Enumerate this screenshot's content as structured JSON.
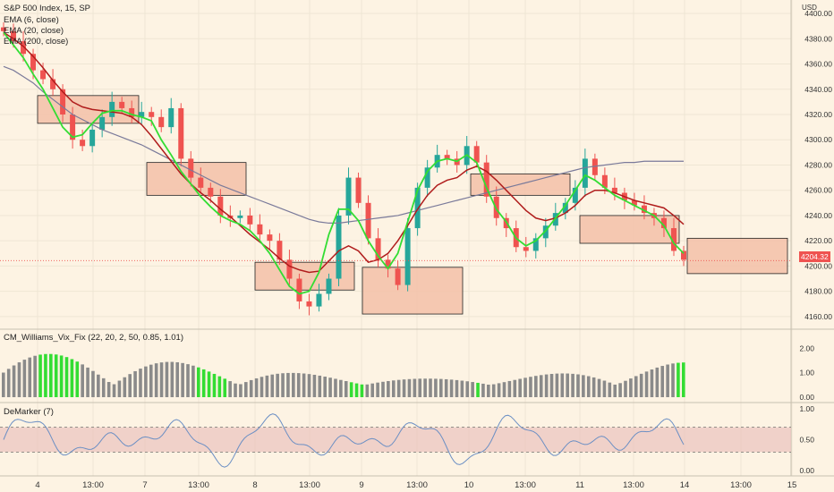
{
  "header": {
    "title": "S&P 500 Index, 15, SP",
    "indicators": [
      "EMA (6, close)",
      "EMA (20, close)",
      "EMA (200, close)"
    ]
  },
  "currency": "USD",
  "price_tag": "4204.32",
  "panels": {
    "vix_fix": {
      "title": "CM_Williams_Vix_Fix (22, 20, 2, 50, 0.85, 1.01)"
    },
    "demarker": {
      "title": "DeMarker (7)"
    }
  },
  "colors": {
    "background": "#fdf3e3",
    "up": "#26a69a",
    "down": "#ef5350",
    "ema6": "#33dd33",
    "ema20": "#b01c1c",
    "ema200": "#7a7a9a",
    "box_fill": "#f3c0a8",
    "hist_gray": "#8a8a8a",
    "hist_green": "#33dd33"
  },
  "chart_data": [
    {
      "type": "candlestick",
      "title": "S&P 500 Index, 15, SP",
      "ylim": [
        4150,
        4405
      ],
      "y_ticks": [
        4160,
        4180,
        4200,
        4220,
        4240,
        4260,
        4280,
        4300,
        4320,
        4340,
        4360,
        4380,
        4400
      ],
      "y_ticks_labels": [
        "4160.00",
        "4180.00",
        "4200.00",
        "4220.00",
        "4240.00",
        "4260.00",
        "4280.00",
        "4300.00",
        "4320.00",
        "4340.00",
        "4360.00",
        "4380.00",
        "4400.00"
      ],
      "x_ticks": [
        "4",
        "13:00",
        "7",
        "13:00",
        "8",
        "13:00",
        "9",
        "13:00",
        "10",
        "13:00",
        "11",
        "13:00",
        "14",
        "13:00",
        "15"
      ],
      "close_path": [
        4386,
        4378,
        4368,
        4355,
        4348,
        4340,
        4320,
        4300,
        4295,
        4308,
        4318,
        4330,
        4325,
        4318,
        4322,
        4318,
        4310,
        4325,
        4285,
        4270,
        4262,
        4255,
        4240,
        4238,
        4240,
        4233,
        4225,
        4220,
        4205,
        4190,
        4172,
        4168,
        4178,
        4190,
        4240,
        4270,
        4250,
        4222,
        4205,
        4198,
        4185,
        4230,
        4262,
        4278,
        4288,
        4285,
        4280,
        4295,
        4282,
        4255,
        4238,
        4230,
        4215,
        4212,
        4222,
        4232,
        4242,
        4250,
        4262,
        4285,
        4272,
        4262,
        4258,
        4252,
        4248,
        4242,
        4238,
        4230,
        4212,
        4205
      ],
      "ema6": [
        4385,
        4375,
        4365,
        4352,
        4340,
        4325,
        4310,
        4302,
        4304,
        4313,
        4321,
        4323,
        4323,
        4320,
        4318,
        4315,
        4300,
        4288,
        4275,
        4265,
        4255,
        4247,
        4240,
        4236,
        4233,
        4228,
        4220,
        4210,
        4197,
        4184,
        4178,
        4180,
        4195,
        4225,
        4245,
        4245,
        4236,
        4220,
        4208,
        4198,
        4210,
        4235,
        4260,
        4275,
        4283,
        4285,
        4283,
        4288,
        4282,
        4262,
        4245,
        4235,
        4222,
        4216,
        4220,
        4228,
        4238,
        4248,
        4260,
        4272,
        4268,
        4262,
        4256,
        4252,
        4248,
        4244,
        4240,
        4232,
        4218,
        4210
      ],
      "ema20": [
        4385,
        4380,
        4374,
        4366,
        4357,
        4347,
        4338,
        4330,
        4326,
        4324,
        4323,
        4322,
        4321,
        4318,
        4312,
        4303,
        4293,
        4283,
        4273,
        4265,
        4258,
        4252,
        4245,
        4239,
        4232,
        4225,
        4219,
        4213,
        4206,
        4200,
        4197,
        4195,
        4196,
        4204,
        4212,
        4216,
        4212,
        4203,
        4205,
        4210,
        4220,
        4232,
        4245,
        4256,
        4264,
        4268,
        4270,
        4276,
        4279,
        4275,
        4268,
        4260,
        4252,
        4244,
        4238,
        4236,
        4238,
        4242,
        4248,
        4256,
        4260,
        4260,
        4258,
        4255,
        4252,
        4250,
        4248,
        4246,
        4240,
        4233
      ],
      "ema200": [
        4358,
        4355,
        4350,
        4345,
        4338,
        4332,
        4326,
        4320,
        4316,
        4312,
        4308,
        4305,
        4302,
        4299,
        4296,
        4292,
        4288,
        4284,
        4280,
        4276,
        4272,
        4268,
        4264,
        4261,
        4258,
        4255,
        4252,
        4249,
        4246,
        4243,
        4240,
        4237,
        4235,
        4234,
        4234,
        4235,
        4236,
        4237,
        4238,
        4239,
        4240,
        4242,
        4244,
        4246,
        4248,
        4250,
        4252,
        4254,
        4256,
        4258,
        4260,
        4262,
        4264,
        4266,
        4268,
        4270,
        4272,
        4274,
        4276,
        4278,
        4279,
        4280,
        4281,
        4282,
        4282,
        4283,
        4283,
        4283,
        4283,
        4283
      ]
    },
    {
      "type": "bar",
      "title": "CM_Williams_Vix_Fix (22, 20, 2, 50, 0.85, 1.01)",
      "ylim": [
        0,
        2.6
      ],
      "y_ticks": [
        0,
        1,
        2
      ],
      "y_ticks_labels": [
        "0.00",
        "1.00",
        "2.00"
      ]
    },
    {
      "type": "line",
      "title": "DeMarker (7)",
      "ylim": [
        0,
        1
      ],
      "y_ticks": [
        0,
        0.5,
        1
      ],
      "y_ticks_labels": [
        "0.00",
        "0.50",
        "1.00"
      ],
      "band": [
        0.3,
        0.7
      ]
    }
  ]
}
